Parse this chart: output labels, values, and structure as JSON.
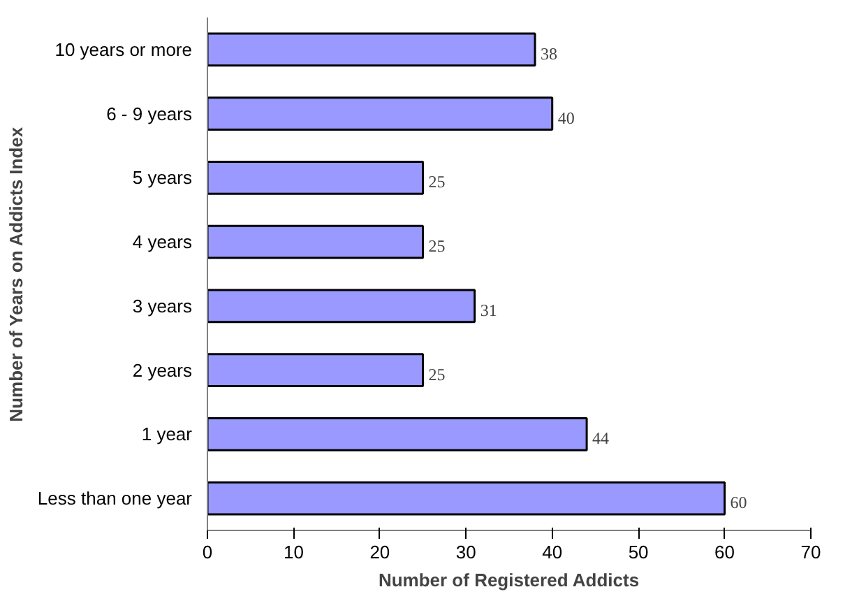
{
  "chart_data": {
    "type": "bar",
    "orientation": "horizontal",
    "xlabel": "Number of Registered Addicts",
    "ylabel": "Number of Years on Addicts Index",
    "categories": [
      "10 years or more",
      "6 - 9 years",
      "5 years",
      "4 years",
      "3 years",
      "2 years",
      "1 year",
      "Less than one year"
    ],
    "values": [
      38,
      40,
      25,
      25,
      31,
      25,
      44,
      60
    ],
    "color": "#9999ff",
    "xlim": [
      0,
      70
    ],
    "xticks": [
      0,
      10,
      20,
      30,
      40,
      50,
      60,
      70
    ],
    "grid": false,
    "data_labels": true
  }
}
